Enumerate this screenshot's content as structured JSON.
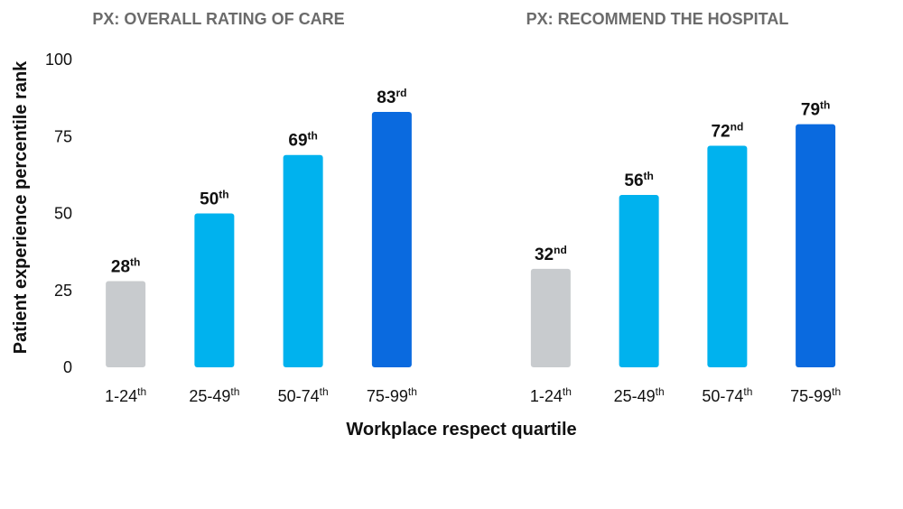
{
  "x_label": "Workplace respect quartile",
  "chart_data": [
    {
      "type": "bar",
      "title": "PX: OVERALL RATING OF CARE",
      "y_label": "Patient experience percentile rank",
      "categories": [
        "1-24th",
        "25-49th",
        "50-74th",
        "75-99th"
      ],
      "values": [
        28,
        50,
        69,
        83
      ],
      "value_labels": [
        "28th",
        "50th",
        "69th",
        "83rd"
      ],
      "colors": [
        "#c8cbce",
        "#00b2ee",
        "#00b2ee",
        "#0a6adf"
      ],
      "ylim": [
        0,
        100
      ],
      "yticks": [
        0,
        25,
        50,
        75,
        100
      ]
    },
    {
      "type": "bar",
      "title": "PX: RECOMMEND THE HOSPITAL",
      "categories": [
        "1-24th",
        "25-49th",
        "50-74th",
        "75-99th"
      ],
      "values": [
        32,
        56,
        72,
        79
      ],
      "value_labels": [
        "32nd",
        "56th",
        "72nd",
        "79th"
      ],
      "colors": [
        "#c8cbce",
        "#00b2ee",
        "#00b2ee",
        "#0a6adf"
      ],
      "ylim": [
        0,
        100
      ]
    }
  ]
}
